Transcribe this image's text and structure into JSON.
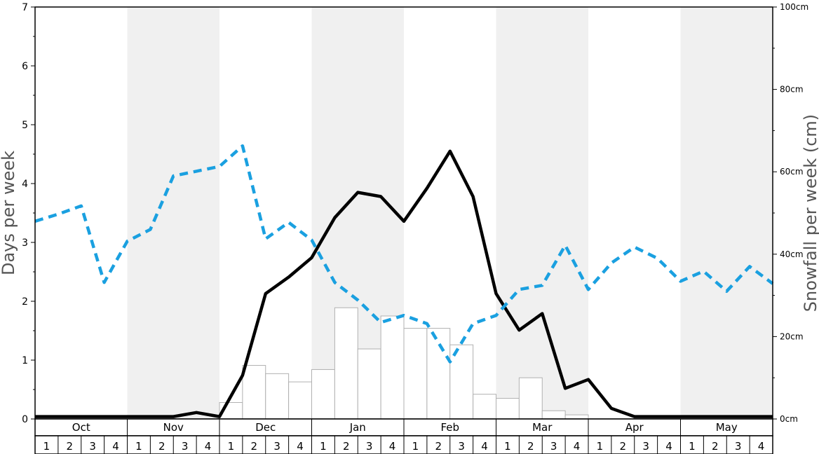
{
  "chart_data": {
    "type": "bar+line",
    "ylabel": "Days per week",
    "y2label": "Snowfall per week (cm)",
    "y_ticks": [
      "0",
      "1",
      "2",
      "3",
      "4",
      "5",
      "6",
      "7"
    ],
    "y2_ticks": [
      "0cm",
      "20cm",
      "40cm",
      "60cm",
      "80cm",
      "100cm"
    ],
    "ylim": [
      0,
      7
    ],
    "y2lim": [
      0,
      100
    ],
    "months": [
      "Oct",
      "Nov",
      "Dec",
      "Jan",
      "Feb",
      "Mar",
      "Apr",
      "May"
    ],
    "weeks": [
      "1",
      "2",
      "3",
      "4"
    ],
    "shaded_months": [
      "Nov",
      "Jan",
      "Mar",
      "May"
    ],
    "colors": {
      "shade": "#f0f0f0",
      "bar_fill": "#ffffff",
      "bar_stroke": "#b0b0b0",
      "solid_line": "#000000",
      "dashed_line": "#1aa0e0"
    },
    "series": [
      {
        "kind": "bar",
        "axis": "right",
        "values": [
          0,
          0,
          0,
          0,
          0,
          0,
          0,
          0,
          4,
          13,
          11,
          9,
          12,
          27,
          17,
          25,
          22,
          22,
          18,
          6,
          5,
          10,
          2,
          1,
          0,
          0,
          0,
          0,
          0,
          0,
          0,
          0
        ]
      },
      {
        "kind": "line",
        "style": "solid",
        "axis": "left",
        "values": [
          0.04,
          0.04,
          0.04,
          0.04,
          0.04,
          0.04,
          0.04,
          0.11,
          0.04,
          0.74,
          2.13,
          2.41,
          2.74,
          3.42,
          3.85,
          3.78,
          3.36,
          3.92,
          4.55,
          3.78,
          2.13,
          1.51,
          1.79,
          0.52,
          0.67,
          0.18,
          0.04,
          0.04,
          0.04,
          0.04,
          0.04,
          0.04,
          0.04
        ]
      },
      {
        "kind": "line",
        "style": "dashed",
        "axis": "left",
        "values": [
          3.36,
          3.48,
          3.62,
          2.32,
          3.02,
          3.22,
          4.13,
          4.21,
          4.29,
          4.64,
          3.06,
          3.34,
          3.04,
          2.32,
          2.02,
          1.64,
          1.76,
          1.62,
          0.97,
          1.62,
          1.76,
          2.2,
          2.27,
          2.95,
          2.2,
          2.65,
          2.92,
          2.73,
          2.34,
          2.51,
          2.17,
          2.59,
          2.3
        ]
      }
    ]
  }
}
